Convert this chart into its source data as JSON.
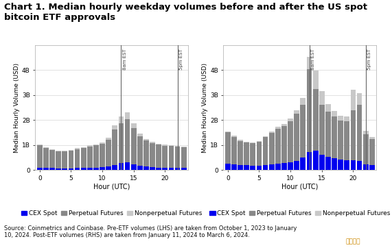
{
  "title": "Chart 1. Median hourly weekday volumes before and after the US spot\nbitcoin ETF approvals",
  "source_text": "Source: Coinmetrics and Coinbase. Pre-ETF volumes (LHS) are taken from October 1, 2023 to January\n10, 2024. Post-ETF volumes (RHS) are taken from January 11, 2024 to March 6, 2024.",
  "hours": [
    0,
    1,
    2,
    3,
    4,
    5,
    6,
    7,
    8,
    9,
    10,
    11,
    12,
    13,
    14,
    15,
    16,
    17,
    18,
    19,
    20,
    21,
    22,
    23
  ],
  "pre_cex_spot": [
    0.1,
    0.09,
    0.08,
    0.07,
    0.07,
    0.07,
    0.08,
    0.09,
    0.1,
    0.1,
    0.11,
    0.13,
    0.2,
    0.28,
    0.32,
    0.22,
    0.16,
    0.13,
    0.11,
    0.1,
    0.1,
    0.09,
    0.09,
    0.08
  ],
  "pre_perp_futures": [
    0.9,
    0.8,
    0.72,
    0.68,
    0.68,
    0.7,
    0.76,
    0.8,
    0.85,
    0.9,
    0.95,
    1.08,
    1.42,
    1.6,
    1.72,
    1.45,
    1.2,
    1.05,
    0.97,
    0.92,
    0.87,
    0.87,
    0.84,
    0.82
  ],
  "pre_nonperp_futures": [
    0.03,
    0.03,
    0.02,
    0.02,
    0.02,
    0.02,
    0.03,
    0.03,
    0.03,
    0.03,
    0.03,
    0.07,
    0.18,
    0.27,
    0.27,
    0.2,
    0.1,
    0.07,
    0.05,
    0.04,
    0.04,
    0.03,
    0.03,
    0.03
  ],
  "post_cex_spot": [
    0.25,
    0.23,
    0.21,
    0.19,
    0.18,
    0.18,
    0.21,
    0.23,
    0.26,
    0.28,
    0.3,
    0.35,
    0.5,
    0.72,
    0.78,
    0.62,
    0.52,
    0.48,
    0.43,
    0.4,
    0.38,
    0.35,
    0.22,
    0.2
  ],
  "post_perp_futures": [
    1.25,
    1.1,
    0.95,
    0.9,
    0.9,
    0.95,
    1.1,
    1.25,
    1.4,
    1.48,
    1.65,
    1.9,
    2.1,
    3.3,
    2.45,
    2.0,
    1.82,
    1.65,
    1.55,
    1.55,
    2.0,
    2.25,
    1.22,
    1.05
  ],
  "post_nonperp_futures": [
    0.05,
    0.05,
    0.04,
    0.03,
    0.03,
    0.03,
    0.04,
    0.05,
    0.06,
    0.07,
    0.1,
    0.14,
    0.28,
    0.5,
    0.75,
    0.53,
    0.3,
    0.22,
    0.18,
    0.18,
    0.82,
    0.48,
    0.12,
    0.08
  ],
  "ylim": [
    0,
    5
  ],
  "yticks": [
    0,
    1,
    2,
    3,
    4
  ],
  "ytick_labels": [
    "0",
    "1B",
    "2B",
    "3B",
    "4B"
  ],
  "ylabel": "Median Hourly Volume (USD)",
  "xlabel": "Hour (UTC)",
  "color_cex_spot": "#0000EE",
  "color_perp_futures": "#888888",
  "color_nonperp_futures": "#C8C8C8",
  "vline_8am_utc": 13,
  "vline_5pm_utc": 22,
  "vline_color": "#666666",
  "background_color": "#FFFFFF",
  "axes_bg": "#FFFFFF",
  "title_fontsize": 9.5,
  "label_fontsize": 7,
  "tick_fontsize": 6.5,
  "legend_fontsize": 6.5,
  "ylabel_fontsize": 6.5,
  "source_fontsize": 6.0
}
